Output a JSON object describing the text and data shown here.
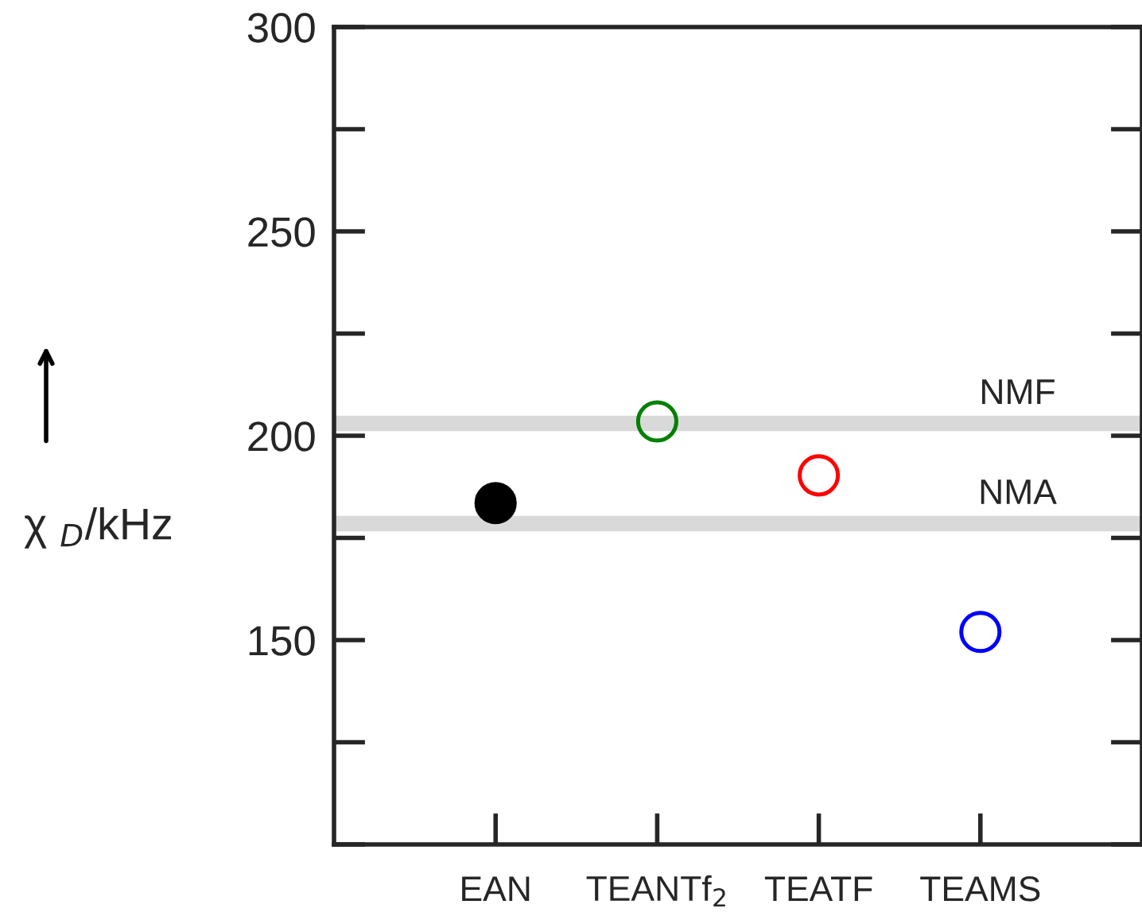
{
  "chart_data": {
    "type": "scatter",
    "ylabel": "χ $_{D}$/kHz",
    "categories": [
      "EAN",
      "TEANTf$_{2}$",
      "TEATF",
      "TEAMS"
    ],
    "series": [
      {
        "color": "#000000",
        "values": [
          183.5,
          null,
          null,
          null
        ]
      },
      {
        "colors": [
          "#000000",
          "#008000",
          "#ff0000",
          "#0000ff"
        ],
        "values": [
          null,
          203.5,
          190.3,
          152
        ]
      }
    ],
    "ylim": [
      100,
      300
    ],
    "yticks": [
      150,
      200,
      250,
      300
    ],
    "ref_lines": [
      {
        "axis": "y",
        "value": 203,
        "label": "NMF",
        "color": "#d9d9d9"
      },
      {
        "axis": "y",
        "value": 178.5,
        "label": "NMA",
        "color": "#d9d9d9"
      }
    ],
    "marker": "circle",
    "grid": false,
    "legend": false
  }
}
